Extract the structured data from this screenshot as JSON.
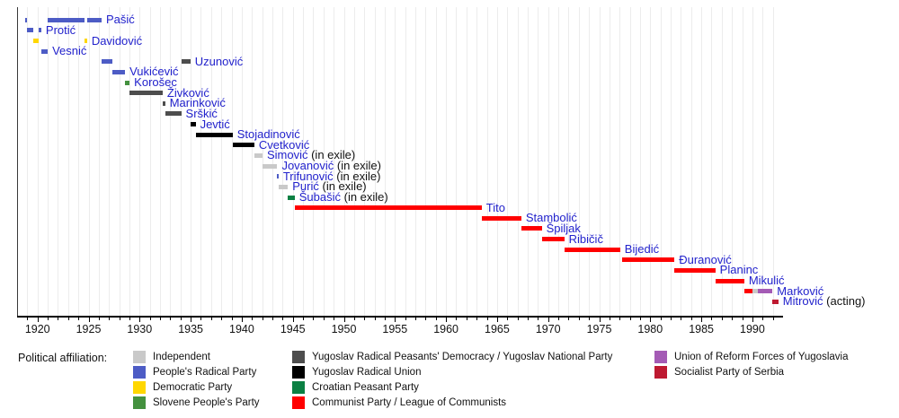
{
  "chart_data": {
    "type": "timeline",
    "x_axis": {
      "min": 1918,
      "max": 1993,
      "major_ticks": [
        1920,
        1925,
        1930,
        1935,
        1940,
        1945,
        1950,
        1955,
        1960,
        1965,
        1970,
        1975,
        1980,
        1985,
        1990
      ],
      "minor_tick_start": 1919,
      "minor_tick_end": 1992,
      "minor_tick_interval": 1,
      "grid": true
    },
    "rows": [
      {
        "name": "Pašić",
        "suffix": "",
        "segments": [
          {
            "start": 1918.75,
            "end": 1918.97,
            "party": "radical"
          },
          {
            "start": 1921.0,
            "end": 1924.57,
            "party": "radical"
          },
          {
            "start": 1924.85,
            "end": 1926.27,
            "party": "radical"
          }
        ]
      },
      {
        "name": "Protić",
        "suffix": "",
        "segments": [
          {
            "start": 1918.97,
            "end": 1919.62,
            "party": "radical"
          },
          {
            "start": 1920.13,
            "end": 1920.37,
            "party": "radical"
          }
        ]
      },
      {
        "name": "Davidović",
        "suffix": "",
        "segments": [
          {
            "start": 1919.62,
            "end": 1920.13,
            "party": "democratic"
          },
          {
            "start": 1924.57,
            "end": 1924.85,
            "party": "democratic"
          }
        ]
      },
      {
        "name": "Vesnić",
        "suffix": "",
        "segments": [
          {
            "start": 1920.37,
            "end": 1921.0,
            "party": "radical"
          }
        ]
      },
      {
        "name": "Uzunović",
        "suffix": "",
        "segments": [
          {
            "start": 1926.27,
            "end": 1927.29,
            "party": "radical"
          },
          {
            "start": 1934.07,
            "end": 1934.97,
            "party": "yrpd"
          }
        ]
      },
      {
        "name": "Vukićević",
        "suffix": "",
        "segments": [
          {
            "start": 1927.29,
            "end": 1928.57,
            "party": "radical"
          }
        ]
      },
      {
        "name": "Korošec",
        "suffix": "",
        "segments": [
          {
            "start": 1928.57,
            "end": 1929.02,
            "party": "slovene"
          }
        ]
      },
      {
        "name": "Živković",
        "suffix": "",
        "segments": [
          {
            "start": 1929.02,
            "end": 1932.25,
            "party": "yrpd"
          }
        ]
      },
      {
        "name": "Marinković",
        "suffix": "",
        "segments": [
          {
            "start": 1932.25,
            "end": 1932.5,
            "party": "yrpd"
          }
        ]
      },
      {
        "name": "Srškić",
        "suffix": "",
        "segments": [
          {
            "start": 1932.5,
            "end": 1934.07,
            "party": "yrpd"
          }
        ]
      },
      {
        "name": "Jevtić",
        "suffix": "",
        "segments": [
          {
            "start": 1934.97,
            "end": 1935.48,
            "party": "yru"
          }
        ]
      },
      {
        "name": "Stojadinović",
        "suffix": "",
        "segments": [
          {
            "start": 1935.48,
            "end": 1939.1,
            "party": "yru"
          }
        ]
      },
      {
        "name": "Cvetković",
        "suffix": "",
        "segments": [
          {
            "start": 1939.1,
            "end": 1941.23,
            "party": "yru"
          }
        ]
      },
      {
        "name": "Simović",
        "suffix": "(in exile)",
        "segments": [
          {
            "start": 1941.23,
            "end": 1942.03,
            "party": "independent"
          }
        ]
      },
      {
        "name": "Jovanović",
        "suffix": "(in exile)",
        "segments": [
          {
            "start": 1942.03,
            "end": 1943.48,
            "party": "independent"
          }
        ]
      },
      {
        "name": "Trifunović",
        "suffix": "(in exile)",
        "segments": [
          {
            "start": 1943.48,
            "end": 1943.6,
            "party": "radical"
          }
        ]
      },
      {
        "name": "Purić",
        "suffix": "(in exile)",
        "segments": [
          {
            "start": 1943.6,
            "end": 1944.52,
            "party": "independent"
          }
        ]
      },
      {
        "name": "Šubašić",
        "suffix": "(in exile)",
        "segments": [
          {
            "start": 1944.52,
            "end": 1945.18,
            "party": "croatian"
          }
        ]
      },
      {
        "name": "Tito",
        "suffix": "",
        "segments": [
          {
            "start": 1945.18,
            "end": 1963.49,
            "party": "communist"
          }
        ]
      },
      {
        "name": "Stambolić",
        "suffix": "",
        "segments": [
          {
            "start": 1963.49,
            "end": 1967.37,
            "party": "communist"
          }
        ]
      },
      {
        "name": "Špiljak",
        "suffix": "",
        "segments": [
          {
            "start": 1967.37,
            "end": 1969.37,
            "party": "communist"
          }
        ]
      },
      {
        "name": "Ribičič",
        "suffix": "",
        "segments": [
          {
            "start": 1969.37,
            "end": 1971.58,
            "party": "communist"
          }
        ]
      },
      {
        "name": "Bijedić",
        "suffix": "",
        "segments": [
          {
            "start": 1971.58,
            "end": 1977.05,
            "party": "communist"
          }
        ]
      },
      {
        "name": "Đuranović",
        "suffix": "",
        "segments": [
          {
            "start": 1977.2,
            "end": 1982.37,
            "party": "communist"
          }
        ]
      },
      {
        "name": "Planinc",
        "suffix": "",
        "segments": [
          {
            "start": 1982.37,
            "end": 1986.37,
            "party": "communist"
          }
        ]
      },
      {
        "name": "Mikulić",
        "suffix": "",
        "segments": [
          {
            "start": 1986.37,
            "end": 1989.2,
            "party": "communist"
          }
        ]
      },
      {
        "name": "Marković",
        "suffix": "",
        "segments": [
          {
            "start": 1989.2,
            "end": 1990.0,
            "party": "communist"
          },
          {
            "start": 1990.0,
            "end": 1990.5,
            "party": "independent"
          },
          {
            "start": 1990.5,
            "end": 1991.97,
            "party": "reform"
          }
        ]
      },
      {
        "name": "Mitrović",
        "suffix": "(acting)",
        "segments": [
          {
            "start": 1991.97,
            "end": 1992.54,
            "party": "sps"
          }
        ]
      }
    ]
  },
  "parties": {
    "independent": {
      "label": "Independent",
      "color": "#c9c9c9"
    },
    "radical": {
      "label": "People's Radical Party",
      "color": "#4d5cc5"
    },
    "democratic": {
      "label": "Democratic Party",
      "color": "#ffd700"
    },
    "slovene": {
      "label": "Slovene People's Party",
      "color": "#44913f"
    },
    "yrpd": {
      "label": "Yugoslav Radical Peasants' Democracy / Yugoslav National Party",
      "color": "#4d4d4d"
    },
    "yru": {
      "label": "Yugoslav Radical Union",
      "color": "#000000"
    },
    "croatian": {
      "label": "Croatian Peasant Party",
      "color": "#0b8043"
    },
    "communist": {
      "label": "Communist Party / League of Communists",
      "color": "#ff0000"
    },
    "reform": {
      "label": "Union of Reform Forces of Yugoslavia",
      "color": "#a45bb5"
    },
    "sps": {
      "label": "Socialist Party of Serbia",
      "color": "#be1931"
    }
  },
  "legend": {
    "title": "Political affiliation:",
    "columns": [
      [
        "independent",
        "radical",
        "democratic",
        "slovene"
      ],
      [
        "yrpd",
        "yru",
        "croatian",
        "communist"
      ],
      [
        "reform",
        "sps"
      ]
    ]
  }
}
